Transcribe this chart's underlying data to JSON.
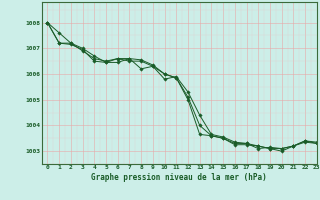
{
  "xlabel": "Graphe pression niveau de la mer (hPa)",
  "xlim": [
    -0.5,
    23
  ],
  "ylim": [
    1002.5,
    1008.8
  ],
  "yticks": [
    1003,
    1004,
    1005,
    1006,
    1007,
    1008
  ],
  "xticks": [
    0,
    1,
    2,
    3,
    4,
    5,
    6,
    7,
    8,
    9,
    10,
    11,
    12,
    13,
    14,
    15,
    16,
    17,
    18,
    19,
    20,
    21,
    22,
    23
  ],
  "bg_color": "#cceee8",
  "grid_color_major": "#e8a8a8",
  "grid_color_minor": "#e8c8c8",
  "line_color": "#1a5c28",
  "line1": [
    1008.0,
    1007.6,
    1007.2,
    1006.9,
    1006.6,
    1006.5,
    1006.6,
    1006.5,
    1006.5,
    1006.3,
    1005.8,
    1005.9,
    1005.3,
    1004.4,
    1003.65,
    1003.55,
    1003.35,
    1003.3,
    1003.2,
    1003.1,
    1003.1,
    1003.2,
    1003.4,
    1003.35
  ],
  "line2": [
    1008.0,
    1007.2,
    1007.2,
    1007.0,
    1006.7,
    1006.45,
    1006.45,
    1006.6,
    1006.2,
    1006.3,
    1006.0,
    1005.85,
    1005.1,
    1004.0,
    1003.6,
    1003.5,
    1003.3,
    1003.3,
    1003.1,
    1003.15,
    1003.1,
    1003.2,
    1003.4,
    1003.3
  ],
  "line3": [
    1008.0,
    1007.2,
    1007.15,
    1006.95,
    1006.5,
    1006.45,
    1006.6,
    1006.6,
    1006.55,
    1006.35,
    1006.0,
    1005.85,
    1005.0,
    1003.65,
    1003.6,
    1003.5,
    1003.25,
    1003.25,
    1003.2,
    1003.1,
    1003.0,
    1003.2,
    1003.35,
    1003.3
  ]
}
